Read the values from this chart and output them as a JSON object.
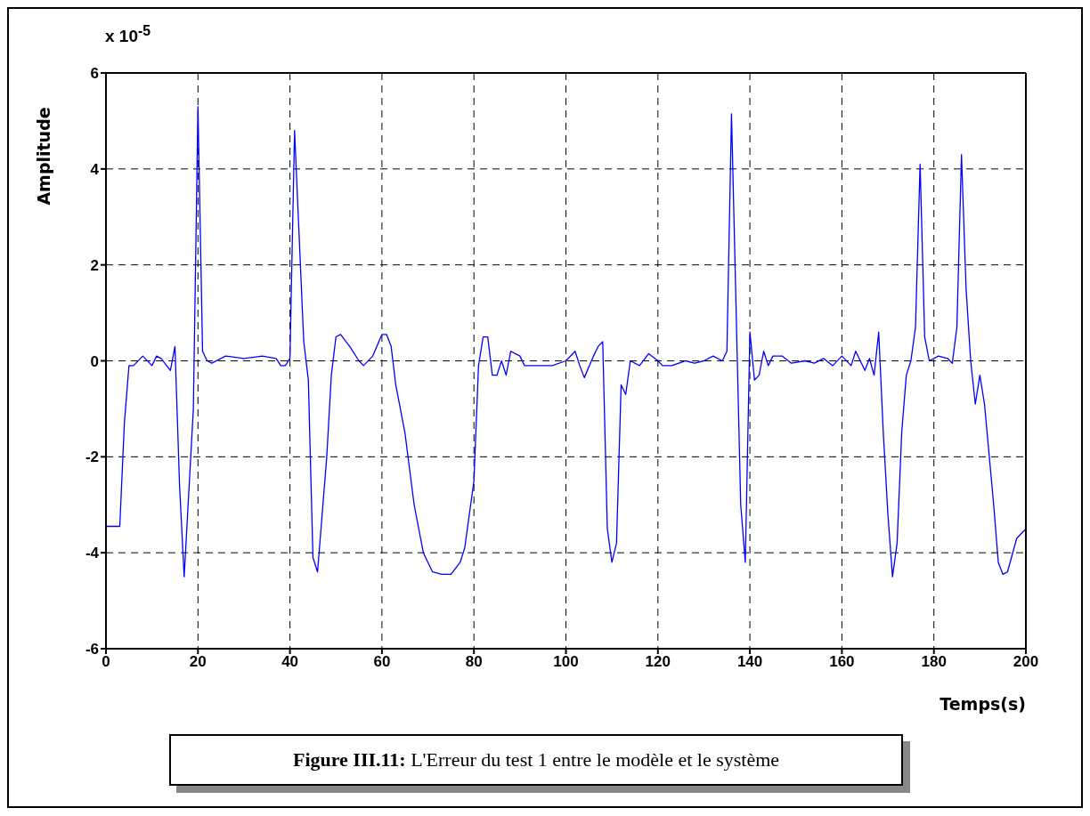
{
  "chart_data": {
    "type": "line",
    "ylabel": "Amplitude",
    "xlabel": "Temps(s)",
    "annotations": [
      "x 10$^{-5}$",
      "Figure III.11: L'Erreur du test 1 entre le modèle et le système"
    ],
    "xlim": [
      0,
      200
    ],
    "xticks": [
      0,
      20,
      40,
      60,
      80,
      100,
      120,
      140,
      160,
      180,
      200
    ],
    "ylim": [
      -6,
      6
    ],
    "yticks": [
      -6,
      -4,
      -2,
      0,
      2,
      4,
      6
    ],
    "grid": true,
    "marker": "none",
    "series": [
      {
        "color": "#0000ff",
        "x": [
          0,
          3,
          4,
          5,
          6,
          8,
          10,
          11,
          12,
          14,
          15,
          16,
          17,
          19,
          20,
          21,
          22,
          23,
          26,
          30,
          34,
          37,
          38,
          39,
          40,
          41,
          43,
          44,
          45,
          46,
          48,
          49,
          50,
          51,
          53,
          55,
          56,
          58,
          60,
          61,
          62,
          63,
          65,
          67,
          69,
          71,
          73,
          75,
          77,
          78,
          80,
          81,
          82,
          83,
          84,
          85,
          86,
          87,
          88,
          90,
          91,
          94,
          97,
          100,
          102,
          103,
          104,
          106,
          107,
          108,
          109,
          110,
          111,
          112,
          113,
          114,
          116,
          118,
          120,
          121,
          123,
          126,
          128,
          130,
          132,
          134,
          135,
          136,
          138,
          139,
          140,
          141,
          142,
          143,
          144,
          145,
          147,
          149,
          152,
          154,
          156,
          158,
          160,
          162,
          163,
          165,
          166,
          167,
          168,
          169,
          170,
          171,
          172,
          173,
          174,
          175,
          176,
          177,
          178,
          179,
          181,
          183,
          184,
          185,
          186,
          187,
          188,
          189,
          190,
          191,
          193,
          194,
          195,
          196,
          198,
          200
        ],
        "values": [
          -3.45,
          -3.45,
          -1.3,
          -0.1,
          -0.1,
          0.1,
          -0.1,
          0.1,
          0.05,
          -0.2,
          0.3,
          -2.6,
          -4.5,
          -1,
          5.3,
          0.2,
          0,
          -0.05,
          0.1,
          0.05,
          0.1,
          0.05,
          -0.1,
          -0.1,
          0.05,
          4.8,
          0.4,
          -0.4,
          -4.1,
          -4.4,
          -2,
          -0.3,
          0.5,
          0.55,
          0.3,
          0,
          -0.1,
          0.1,
          0.55,
          0.55,
          0.3,
          -0.5,
          -1.5,
          -3,
          -4,
          -4.4,
          -4.45,
          -4.45,
          -4.2,
          -3.9,
          -2.5,
          -0.1,
          0.5,
          0.5,
          -0.3,
          -0.3,
          0,
          -0.3,
          0.2,
          0.1,
          -0.1,
          -0.1,
          -0.1,
          0,
          0.2,
          -0.1,
          -0.35,
          0.1,
          0.3,
          0.4,
          -3.5,
          -4.2,
          -3.8,
          -0.5,
          -0.7,
          0,
          -0.1,
          0.15,
          0,
          -0.1,
          -0.1,
          0,
          -0.05,
          0,
          0.1,
          0,
          0.2,
          5.15,
          -3,
          -4.2,
          0.6,
          -0.4,
          -0.3,
          0.2,
          -0.1,
          0.1,
          0.1,
          -0.05,
          0,
          -0.05,
          0.05,
          -0.1,
          0.1,
          -0.1,
          0.2,
          -0.2,
          0.05,
          -0.3,
          0.6,
          -1.5,
          -3.2,
          -4.5,
          -3.8,
          -1.5,
          -0.3,
          0,
          0.7,
          4.1,
          0.5,
          0,
          0.1,
          0.05,
          -0.05,
          0.7,
          4.3,
          1.5,
          0,
          -0.9,
          -0.3,
          -0.9,
          -3,
          -4.2,
          -4.45,
          -4.4,
          -3.7,
          -3.5
        ]
      }
    ]
  }
}
